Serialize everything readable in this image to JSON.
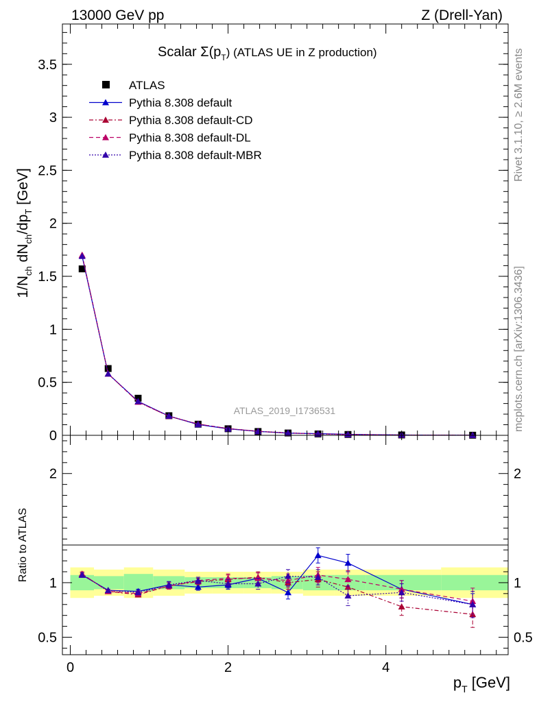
{
  "header": {
    "left": "13000 GeV pp",
    "right": "Z (Drell-Yan)"
  },
  "side_labels": {
    "top": "Rivet 3.1.10, ≥ 2.6M events",
    "bottom": "mcplots.cern.ch [arXiv:1306.3436]"
  },
  "colors": {
    "atlas": "#000000",
    "default": "#0000cc",
    "cd": "#aa0033",
    "dl": "#bb0066",
    "mbr": "#3300aa",
    "band_inner": "#99f599",
    "band_outer": "#ffff99"
  },
  "chart_data": [
    {
      "type": "line",
      "title": "Scalar Σ(pT) (ATLAS UE in Z production)",
      "title_main": "Scalar Σ(p",
      "title_sub": "T",
      "title_rest": ") (ATLAS UE in Z production)",
      "watermark": "ATLAS_2019_I1736531",
      "ylabel": "1/Nch dNch/dpT [GeV]",
      "xlim": [
        -0.1,
        5.55
      ],
      "ylim": [
        0,
        3.88
      ],
      "yticks": [
        0,
        0.5,
        1,
        1.5,
        2,
        2.5,
        3,
        3.5
      ],
      "ytick_labels": [
        "0",
        "0.5",
        "1",
        "1.5",
        "2",
        "2.5",
        "3",
        "3.5"
      ],
      "legend_position": "top-left",
      "x": [
        0.15,
        0.48,
        0.86,
        1.25,
        1.62,
        2.0,
        2.38,
        2.76,
        3.14,
        3.52,
        4.2,
        5.1
      ],
      "series": [
        {
          "name": "ATLAS",
          "style": "marker",
          "color": "#000000",
          "values": [
            1.57,
            0.63,
            0.35,
            0.185,
            0.105,
            0.062,
            0.036,
            0.022,
            0.013,
            0.008,
            0.0035,
            0.001
          ]
        },
        {
          "name": "Pythia 8.308 default",
          "style": "solid",
          "color": "#0000cc",
          "values": [
            1.69,
            0.58,
            0.32,
            0.182,
            0.102,
            0.061,
            0.037,
            0.02,
            0.016,
            0.0095,
            0.0033,
            0.0008
          ]
        },
        {
          "name": "Pythia 8.308 default-CD",
          "style": "dashdot",
          "color": "#aa0033",
          "values": [
            1.7,
            0.58,
            0.315,
            0.18,
            0.106,
            0.064,
            0.038,
            0.022,
            0.0135,
            0.0078,
            0.0027,
            0.0008
          ]
        },
        {
          "name": "Pythia 8.308 default-DL",
          "style": "dashed",
          "color": "#bb0066",
          "values": [
            1.7,
            0.58,
            0.315,
            0.18,
            0.106,
            0.064,
            0.038,
            0.022,
            0.0135,
            0.0078,
            0.0027,
            0.0008
          ]
        },
        {
          "name": "Pythia 8.308 default-MBR",
          "style": "dotted",
          "color": "#3300aa",
          "values": [
            1.69,
            0.58,
            0.32,
            0.182,
            0.104,
            0.063,
            0.037,
            0.023,
            0.014,
            0.007,
            0.0032,
            0.0008
          ]
        }
      ]
    },
    {
      "type": "line",
      "ylabel": "Ratio to ATLAS",
      "xlabel": "pT [GeV]",
      "xlabel_main": "p",
      "xlabel_sub": "T",
      "xlabel_rest": " [GeV]",
      "xlim": [
        -0.1,
        5.55
      ],
      "ylim": [
        0.34,
        2.35
      ],
      "xticks": [
        0,
        2,
        4
      ],
      "xtick_labels": [
        "0",
        "2",
        "4"
      ],
      "yticks": [
        0.5,
        1,
        2
      ],
      "ytick_labels": [
        "0.5",
        "1",
        "2"
      ],
      "bin_edges": [
        0.0,
        0.3,
        0.68,
        1.05,
        1.45,
        1.8,
        2.2,
        2.55,
        2.95,
        3.35,
        3.75,
        4.7,
        5.55
      ],
      "band_inner": [
        0.07,
        0.06,
        0.08,
        0.06,
        0.05,
        0.05,
        0.05,
        0.06,
        0.07,
        0.07,
        0.07,
        0.07
      ],
      "band_outer": [
        0.14,
        0.12,
        0.14,
        0.12,
        0.1,
        0.1,
        0.1,
        0.1,
        0.12,
        0.12,
        0.12,
        0.14
      ],
      "x": [
        0.15,
        0.48,
        0.86,
        1.25,
        1.62,
        2.0,
        2.38,
        2.76,
        3.14,
        3.52,
        4.2,
        5.1
      ],
      "series": [
        {
          "name": "Pythia 8.308 default",
          "style": "solid",
          "color": "#0000cc",
          "values": [
            1.07,
            0.93,
            0.92,
            0.98,
            0.96,
            0.98,
            1.04,
            0.91,
            1.25,
            1.18,
            0.94,
            0.8
          ],
          "errors": [
            0.02,
            0.01,
            0.02,
            0.03,
            0.03,
            0.04,
            0.05,
            0.06,
            0.07,
            0.08,
            0.08,
            0.1
          ]
        },
        {
          "name": "Pythia 8.308 default-CD",
          "style": "dashdot",
          "color": "#aa0033",
          "values": [
            1.08,
            0.92,
            0.89,
            0.97,
            1.01,
            1.03,
            1.05,
            1.0,
            1.03,
            0.96,
            0.78,
            0.71
          ],
          "errors": [
            0.02,
            0.01,
            0.02,
            0.03,
            0.03,
            0.04,
            0.05,
            0.06,
            0.07,
            0.08,
            0.08,
            0.12
          ]
        },
        {
          "name": "Pythia 8.308 default-DL",
          "style": "dashed",
          "color": "#bb0066",
          "values": [
            1.08,
            0.92,
            0.9,
            0.97,
            1.02,
            1.04,
            1.04,
            1.02,
            1.07,
            1.03,
            0.94,
            0.83
          ],
          "errors": [
            0.02,
            0.01,
            0.02,
            0.03,
            0.03,
            0.04,
            0.05,
            0.06,
            0.07,
            0.08,
            0.08,
            0.12
          ]
        },
        {
          "name": "Pythia 8.308 default-MBR",
          "style": "dotted",
          "color": "#3300aa",
          "values": [
            1.07,
            0.93,
            0.91,
            0.98,
            1.02,
            0.99,
            0.99,
            1.06,
            1.05,
            0.88,
            0.91,
            0.8
          ],
          "errors": [
            0.02,
            0.01,
            0.02,
            0.03,
            0.03,
            0.04,
            0.05,
            0.06,
            0.07,
            0.09,
            0.08,
            0.12
          ]
        }
      ]
    }
  ]
}
